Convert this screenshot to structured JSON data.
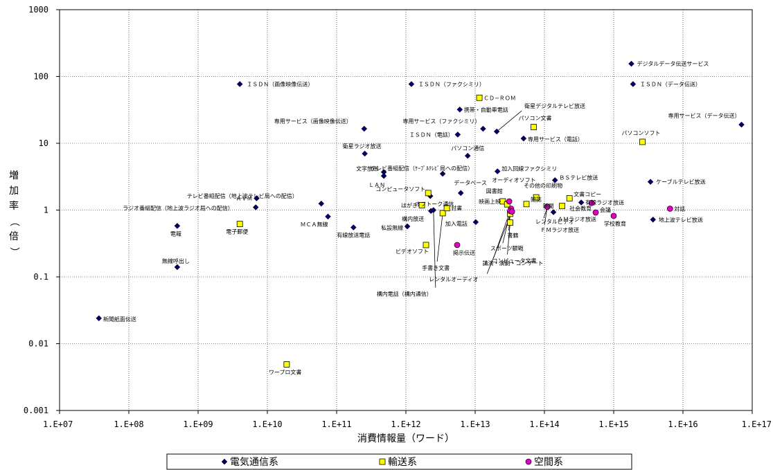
{
  "chart_data": {
    "type": "scatter",
    "xscale": "log",
    "yscale": "log",
    "xlim": [
      10000000.0,
      1e+17
    ],
    "ylim": [
      0.001,
      1000
    ],
    "xlabel": "消費情報量（ワード）",
    "ylabel": "増加率（倍）",
    "grid": true,
    "legend_position": "bottom",
    "x_ticks": [
      "1.E+07",
      "1.E+08",
      "1.E+09",
      "1.E+10",
      "1.E+11",
      "1.E+12",
      "1.E+13",
      "1.E+14",
      "1.E+15",
      "1.E+16",
      "1.E+17"
    ],
    "y_ticks": [
      "1000",
      "100",
      "10",
      "1",
      "0.1",
      "0.01",
      "0.001"
    ],
    "series": [
      {
        "name": "電気通信系",
        "marker": "diamond",
        "color": "#000066",
        "points": [
          {
            "label": "新聞紙面伝送",
            "x": 37000000.0,
            "y": 0.024
          },
          {
            "label": "電報",
            "x": 500000000.0,
            "y": 0.58
          },
          {
            "label": "無線呼出し",
            "x": 500000000.0,
            "y": 0.14
          },
          {
            "label": "ＩＳＤＮ（画像映像伝送）",
            "x": 4000000000.0,
            "y": 77
          },
          {
            "label": "ＡＶＭ",
            "x": 7000000000.0,
            "y": 1.5
          },
          {
            "label": "ラジオ番組配信（地上波ラジオ局への配信）",
            "x": 6800000000.0,
            "y": 1.1
          },
          {
            "label": "テレビ番組配信（地上波テレビ局への配信）",
            "x": 60000000000.0,
            "y": 1.25
          },
          {
            "label": "ＭＣＡ無線",
            "x": 75000000000.0,
            "y": 0.8
          },
          {
            "label": "有線放送電話",
            "x": 175000000000.0,
            "y": 0.55
          },
          {
            "label": "専用サービス（画像映像伝送）",
            "x": 250000000000.0,
            "y": 16.5
          },
          {
            "label": "衛星ラジオ放送",
            "x": 255000000000.0,
            "y": 7
          },
          {
            "label": "文字放送",
            "x": 480000000000.0,
            "y": 3.7
          },
          {
            "label": "ＬＡＮ",
            "x": 480000000000.0,
            "y": 3.25
          },
          {
            "label": "私設無線",
            "x": 1050000000000.0,
            "y": 0.57
          },
          {
            "label": "ＩＳＤＮ（ファクシミリ）",
            "x": 1200000000000.0,
            "y": 77
          },
          {
            "label": "オフトーク通信",
            "x": 2250000000000.0,
            "y": 1.62
          },
          {
            "label": "構内放送",
            "x": 2300000000000.0,
            "y": 0.97
          },
          {
            "label": "構内電話（構内通信）",
            "x": 2500000000000.0,
            "y": 1
          },
          {
            "label": "テレビ番組配信（ｹｰﾌﾞﾙﾃﾚﾋﾞ局への配信）",
            "x": 3400000000000.0,
            "y": 3.5
          },
          {
            "label": "ＩＳＤＮ（電話）",
            "x": 5600000000000.0,
            "y": 13.5
          },
          {
            "label": "携帯・自動車電話",
            "x": 6000000000000.0,
            "y": 32
          },
          {
            "label": "データベース",
            "x": 6200000000000.0,
            "y": 1.8
          },
          {
            "label": "パソコン通信",
            "x": 7800000000000.0,
            "y": 6.5
          },
          {
            "label": "加入電話",
            "x": 10200000000000.0,
            "y": 0.66
          },
          {
            "label": "専用サービス（ファクシミリ）",
            "x": 13000000000000.0,
            "y": 16.5
          },
          {
            "label": "衛星デジタルテレビ放送",
            "x": 20500000000000.0,
            "y": 15
          },
          {
            "label": "加入回線ファクシミリ",
            "x": 21000000000000.0,
            "y": 3.8
          },
          {
            "label": "専用サービス（電話）",
            "x": 50000000000000.0,
            "y": 11.8
          },
          {
            "label": "ＢＳテレビ放送",
            "x": 142000000000000.0,
            "y": 2.8
          },
          {
            "label": "レンタルビデオ",
            "x": 112000000000000.0,
            "y": 1.12
          },
          {
            "label": "ＡＭラジオ放送",
            "x": 135000000000000.0,
            "y": 0.93
          },
          {
            "label": "有線ラジオ放送",
            "x": 340000000000000.0,
            "y": 1.3
          },
          {
            "label": "デジタルデータ伝送サービス",
            "x": 1800000000000000.0,
            "y": 155
          },
          {
            "label": "ＩＳＤＮ（データ伝送）",
            "x": 1900000000000000.0,
            "y": 77
          },
          {
            "label": "ケーブルテレビ放送",
            "x": 3400000000000000.0,
            "y": 2.65
          },
          {
            "label": "地上波テレビ放送",
            "x": 3700000000000000.0,
            "y": 0.72
          },
          {
            "label": "専用サービス（データ伝送）",
            "x": 7e+16,
            "y": 19
          }
        ]
      },
      {
        "name": "輸送系",
        "marker": "square",
        "color": "#ffff00",
        "points": [
          {
            "label": "ワープロ文書",
            "x": 19000000000.0,
            "y": 0.0049
          },
          {
            "label": "電子郵便",
            "x": 4000000000.0,
            "y": 0.62
          },
          {
            "label": "はがき",
            "x": 1700000000000.0,
            "y": 1.18
          },
          {
            "label": "ビデオソフト",
            "x": 1950000000000.0,
            "y": 0.3
          },
          {
            "label": "コンピュータソフト",
            "x": 2100000000000.0,
            "y": 1.8
          },
          {
            "label": "手書き文書",
            "x": 3400000000000.0,
            "y": 0.9
          },
          {
            "label": "封書",
            "x": 3900000000000.0,
            "y": 1.07
          },
          {
            "label": "ＣＤ−ＲＯＭ",
            "x": 11500000000000.0,
            "y": 48
          },
          {
            "label": "図書館",
            "x": 25000000000000.0,
            "y": 1.35
          },
          {
            "label": "オーディオソフト",
            "x": 29000000000000.0,
            "y": 1.22
          },
          {
            "label": "書籍",
            "x": 32000000000000.0,
            "y": 0.88
          },
          {
            "label": "コンピュータ文書",
            "x": 32000000000000.0,
            "y": 0.65
          },
          {
            "label": "パソコン文書",
            "x": 70000000000000.0,
            "y": 17.5
          },
          {
            "label": "その他の印刷物",
            "x": 76000000000000.0,
            "y": 1.55
          },
          {
            "label": "雑誌",
            "x": 55000000000000.0,
            "y": 1.23
          },
          {
            "label": "新聞",
            "x": 180000000000000.0,
            "y": 1.15
          },
          {
            "label": "文書コピー",
            "x": 230000000000000.0,
            "y": 1.5
          },
          {
            "label": "パソコンソフト",
            "x": 2600000000000000.0,
            "y": 10.5
          }
        ]
      },
      {
        "name": "空間系",
        "marker": "circle",
        "color": "#e400c0",
        "points": [
          {
            "label": "掲示伝送",
            "x": 5500000000000.0,
            "y": 0.3
          },
          {
            "label": "映画上映",
            "x": 31000000000000.0,
            "y": 1.35
          },
          {
            "label": "スポーツ観戦",
            "x": 33000000000000.0,
            "y": 1.05
          },
          {
            "label": "講演・演劇・コンサート",
            "x": 32000000000000.0,
            "y": 0.97
          },
          {
            "label": "レンタルオーディオ",
            "x": 34000000000000.0,
            "y": 0.95
          },
          {
            "label": "ＦＭラジオ放送",
            "x": 110000000000000.0,
            "y": 1.12
          },
          {
            "label": "社会教育",
            "x": 480000000000000.0,
            "y": 1.28
          },
          {
            "label": "会議",
            "x": 550000000000000.0,
            "y": 0.92
          },
          {
            "label": "学校教育",
            "x": 1000000000000000.0,
            "y": 0.82
          },
          {
            "label": "対話",
            "x": 6500000000000000.0,
            "y": 1.05
          }
        ]
      }
    ]
  }
}
